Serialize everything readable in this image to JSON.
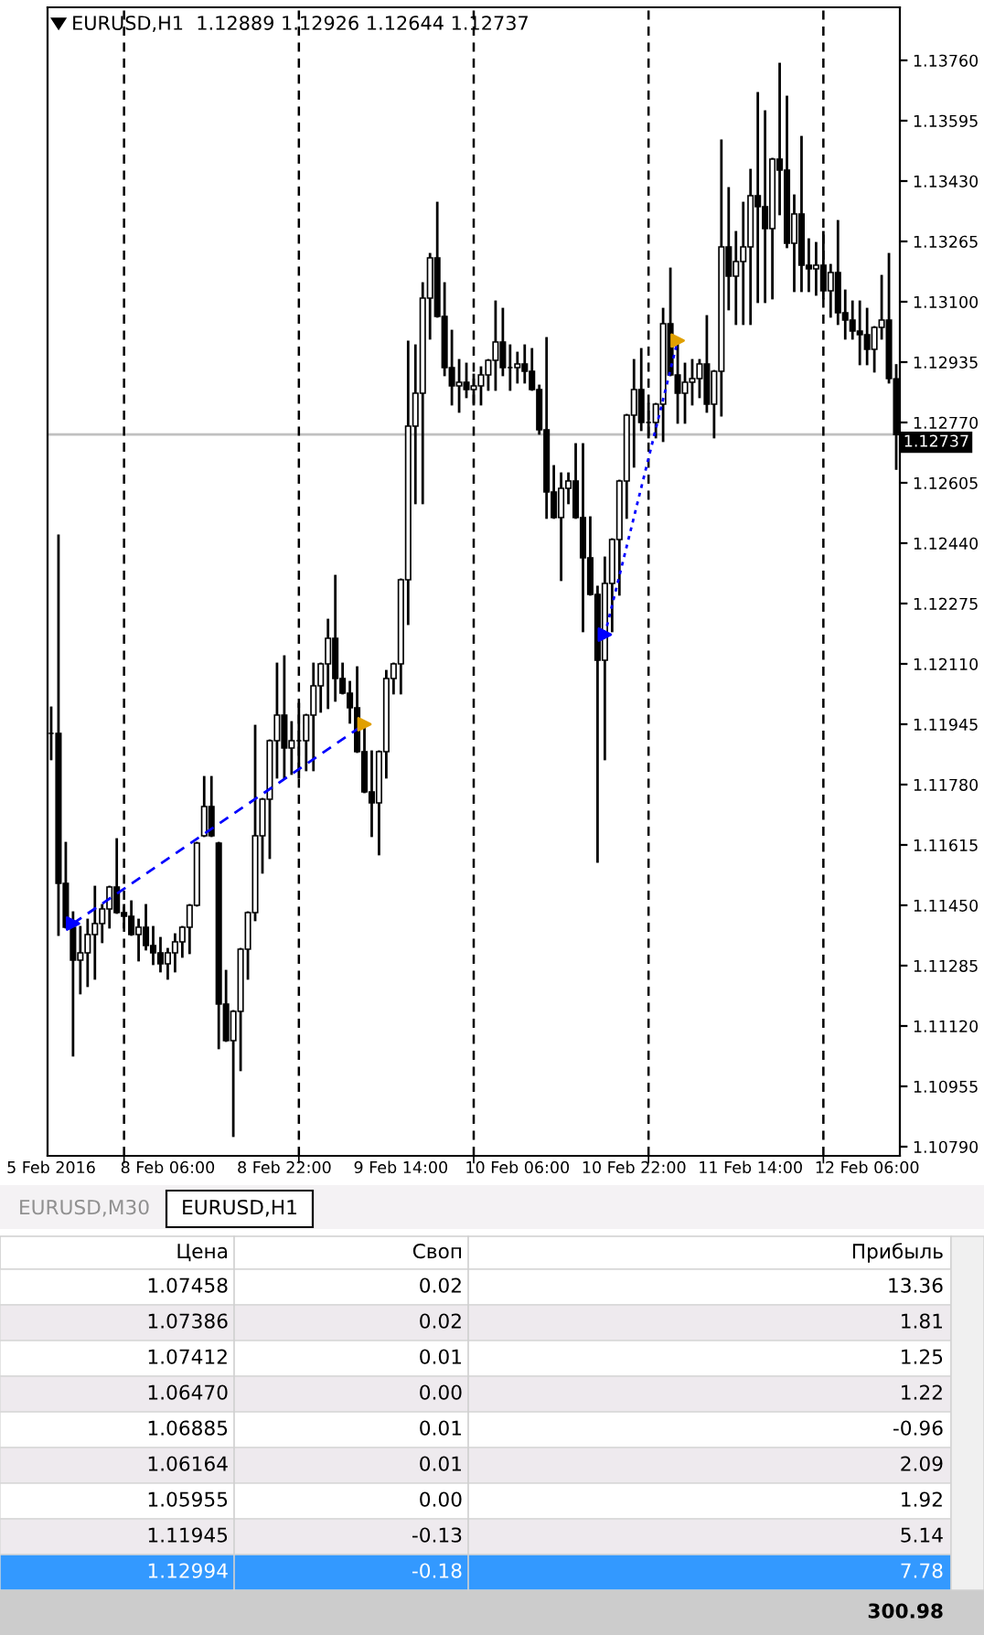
{
  "chart_data": [
    {
      "type": "candlestick",
      "title": "EURUSD,H1  1.12889 1.12926 1.12644 1.12737",
      "color": "#000000",
      "categories": [
        "5 Feb 2016",
        null,
        null,
        null,
        null,
        null,
        null,
        null,
        null,
        null,
        null,
        null,
        null,
        null,
        null,
        null,
        "8 Feb 06:00",
        null,
        null,
        null,
        null,
        null,
        null,
        null,
        null,
        null,
        null,
        null,
        null,
        null,
        null,
        null,
        "8 Feb 22:00",
        null,
        null,
        null,
        null,
        null,
        null,
        null,
        null,
        null,
        null,
        null,
        null,
        null,
        null,
        null,
        "9 Feb 14:00",
        null,
        null,
        null,
        null,
        null,
        null,
        null,
        null,
        null,
        null,
        null,
        null,
        null,
        null,
        null,
        "10 Feb 06:00",
        null,
        null,
        null,
        null,
        null,
        null,
        null,
        null,
        null,
        null,
        null,
        null,
        null,
        null,
        null,
        "10 Feb 22:00",
        null,
        null,
        null,
        null,
        null,
        null,
        null,
        null,
        null,
        null,
        null,
        null,
        null,
        null,
        null,
        "11 Feb 14:00",
        null,
        null,
        null,
        null,
        null,
        null,
        null,
        null,
        null,
        null,
        null,
        null,
        null,
        null,
        null,
        "12 Feb 06:00",
        null,
        null,
        null,
        null
      ],
      "ohlc": [
        [
          1.1192,
          1.1199,
          1.1185,
          1.1192
        ],
        [
          1.1192,
          1.1246,
          1.1137,
          1.1151
        ],
        [
          1.1151,
          1.1162,
          1.1139,
          1.1139
        ],
        [
          1.1139,
          1.1143,
          1.1104,
          1.113
        ],
        [
          1.113,
          1.1139,
          1.1121,
          1.1132
        ],
        [
          1.1132,
          1.1141,
          1.1123,
          1.1137
        ],
        [
          1.1137,
          1.115,
          1.1125,
          1.114
        ],
        [
          1.114,
          1.1145,
          1.1135,
          1.1144
        ],
        [
          1.1144,
          1.115,
          1.1139,
          1.115
        ],
        [
          1.115,
          1.1163,
          1.1143,
          1.1143
        ],
        [
          1.1143,
          1.1145,
          1.1139,
          1.1142
        ],
        [
          1.1142,
          1.1146,
          1.1137,
          1.1137
        ],
        [
          1.1137,
          1.1141,
          1.113,
          1.1139
        ],
        [
          1.1139,
          1.1145,
          1.1133,
          1.1134
        ],
        [
          1.1134,
          1.1139,
          1.1129,
          1.1132
        ],
        [
          1.1132,
          1.1136,
          1.1127,
          1.1129
        ],
        [
          1.1129,
          1.1133,
          1.1125,
          1.1132
        ],
        [
          1.1132,
          1.1137,
          1.1127,
          1.1135
        ],
        [
          1.1135,
          1.1139,
          1.1131,
          1.1139
        ],
        [
          1.1139,
          1.1145,
          1.1132,
          1.1145
        ],
        [
          1.1145,
          1.1162,
          1.1145,
          1.1162
        ],
        [
          1.1164,
          1.118,
          1.1164,
          1.1172
        ],
        [
          1.1172,
          1.118,
          1.1164,
          1.1164
        ],
        [
          1.1162,
          1.1162,
          1.1106,
          1.1118
        ],
        [
          1.1118,
          1.1127,
          1.1108,
          1.1108
        ],
        [
          1.1108,
          1.1116,
          1.1082,
          1.1116
        ],
        [
          1.1116,
          1.1133,
          1.11,
          1.1133
        ],
        [
          1.1133,
          1.1143,
          1.1125,
          1.1143
        ],
        [
          1.1143,
          1.1194,
          1.1141,
          1.1164
        ],
        [
          1.1164,
          1.1174,
          1.1154,
          1.1174
        ],
        [
          1.1174,
          1.119,
          1.1158,
          1.119
        ],
        [
          1.119,
          1.1211,
          1.118,
          1.1197
        ],
        [
          1.1197,
          1.1213,
          1.118,
          1.1188
        ],
        [
          1.1188,
          1.1195,
          1.1181,
          1.119
        ],
        [
          1.119,
          1.12,
          1.118,
          1.119
        ],
        [
          1.119,
          1.1197,
          1.1182,
          1.1197
        ],
        [
          1.1197,
          1.1211,
          1.1182,
          1.1205
        ],
        [
          1.1205,
          1.1211,
          1.1198,
          1.1211
        ],
        [
          1.1211,
          1.1223,
          1.1199,
          1.1218
        ],
        [
          1.1218,
          1.1235,
          1.1201,
          1.1207
        ],
        [
          1.1207,
          1.1211,
          1.1203,
          1.1203
        ],
        [
          1.1203,
          1.1206,
          1.1195,
          1.1199
        ],
        [
          1.1199,
          1.121,
          1.1187,
          1.1187
        ],
        [
          1.1187,
          1.1195,
          1.1176,
          1.1176
        ],
        [
          1.1176,
          1.1187,
          1.1164,
          1.1173
        ],
        [
          1.1173,
          1.1187,
          1.1159,
          1.1187
        ],
        [
          1.1187,
          1.1209,
          1.118,
          1.1207
        ],
        [
          1.1207,
          1.1211,
          1.1203,
          1.1211
        ],
        [
          1.1211,
          1.1234,
          1.1203,
          1.1234
        ],
        [
          1.1234,
          1.1299,
          1.1222,
          1.1276
        ],
        [
          1.1276,
          1.1298,
          1.1255,
          1.1285
        ],
        [
          1.1285,
          1.1315,
          1.1255,
          1.1311
        ],
        [
          1.1311,
          1.1323,
          1.13,
          1.1322
        ],
        [
          1.1322,
          1.1337,
          1.1306,
          1.1306
        ],
        [
          1.1306,
          1.1315,
          1.129,
          1.1292
        ],
        [
          1.1292,
          1.1302,
          1.1282,
          1.1287
        ],
        [
          1.1287,
          1.1294,
          1.128,
          1.1288
        ],
        [
          1.1288,
          1.1293,
          1.1284,
          1.1286
        ],
        [
          1.1286,
          1.129,
          1.1282,
          1.1287
        ],
        [
          1.1287,
          1.1292,
          1.1282,
          1.129
        ],
        [
          1.129,
          1.1294,
          1.1286,
          1.1294
        ],
        [
          1.1294,
          1.131,
          1.1286,
          1.1299
        ],
        [
          1.1299,
          1.1308,
          1.129,
          1.1292
        ],
        [
          1.1292,
          1.1298,
          1.1286,
          1.1292
        ],
        [
          1.1292,
          1.1296,
          1.1288,
          1.1293
        ],
        [
          1.1293,
          1.1298,
          1.1288,
          1.1291
        ],
        [
          1.1291,
          1.1297,
          1.1286,
          1.1286
        ],
        [
          1.1286,
          1.1287,
          1.1274,
          1.1275
        ],
        [
          1.1275,
          1.13,
          1.1251,
          1.1258
        ],
        [
          1.1258,
          1.1265,
          1.1251,
          1.1251
        ],
        [
          1.1251,
          1.1263,
          1.1234,
          1.1259
        ],
        [
          1.1259,
          1.1263,
          1.1255,
          1.1261
        ],
        [
          1.1261,
          1.1271,
          1.1251,
          1.1251
        ],
        [
          1.1251,
          1.1271,
          1.122,
          1.124
        ],
        [
          1.124,
          1.1251,
          1.123,
          1.123
        ],
        [
          1.123,
          1.1232,
          1.1157,
          1.1212
        ],
        [
          1.1212,
          1.124,
          1.1185,
          1.1233
        ],
        [
          1.1233,
          1.1245,
          1.122,
          1.1245
        ],
        [
          1.1245,
          1.1261,
          1.123,
          1.1261
        ],
        [
          1.1261,
          1.1279,
          1.1251,
          1.1279
        ],
        [
          1.1279,
          1.1294,
          1.1265,
          1.1286
        ],
        [
          1.1286,
          1.1297,
          1.1275,
          1.1277
        ],
        [
          1.1277,
          1.1282,
          1.1273,
          1.1277
        ],
        [
          1.1277,
          1.1282,
          1.1273,
          1.1282
        ],
        [
          1.1282,
          1.1308,
          1.1272,
          1.1304
        ],
        [
          1.1304,
          1.1319,
          1.129,
          1.129
        ],
        [
          1.129,
          1.1299,
          1.1277,
          1.1285
        ],
        [
          1.1285,
          1.1293,
          1.1277,
          1.1288
        ],
        [
          1.1288,
          1.1294,
          1.1282,
          1.1289
        ],
        [
          1.1289,
          1.1294,
          1.1284,
          1.1293
        ],
        [
          1.1293,
          1.1306,
          1.128,
          1.1282
        ],
        [
          1.1282,
          1.1291,
          1.1273,
          1.1291
        ],
        [
          1.1291,
          1.1354,
          1.1279,
          1.1325
        ],
        [
          1.1325,
          1.1341,
          1.1308,
          1.1317
        ],
        [
          1.1317,
          1.1329,
          1.1304,
          1.1321
        ],
        [
          1.1321,
          1.1337,
          1.1304,
          1.1325
        ],
        [
          1.1325,
          1.1346,
          1.1304,
          1.1339
        ],
        [
          1.1339,
          1.1367,
          1.131,
          1.1336
        ],
        [
          1.1336,
          1.1362,
          1.131,
          1.133
        ],
        [
          1.133,
          1.1349,
          1.1311,
          1.1349
        ],
        [
          1.1349,
          1.1375,
          1.1334,
          1.1346
        ],
        [
          1.1346,
          1.1366,
          1.1325,
          1.1326
        ],
        [
          1.1326,
          1.1339,
          1.1313,
          1.1334
        ],
        [
          1.1334,
          1.1355,
          1.1313,
          1.132
        ],
        [
          1.132,
          1.1327,
          1.1313,
          1.1319
        ],
        [
          1.1319,
          1.1326,
          1.1312,
          1.132
        ],
        [
          1.132,
          1.1329,
          1.1311,
          1.1313
        ],
        [
          1.1313,
          1.132,
          1.1306,
          1.1318
        ],
        [
          1.1318,
          1.1332,
          1.1304,
          1.1307
        ],
        [
          1.1307,
          1.1313,
          1.13,
          1.1305
        ],
        [
          1.1305,
          1.131,
          1.13,
          1.1302
        ],
        [
          1.1302,
          1.131,
          1.1293,
          1.1301
        ],
        [
          1.1301,
          1.1308,
          1.1293,
          1.1297
        ],
        [
          1.1297,
          1.1303,
          1.1291,
          1.1303
        ],
        [
          1.1303,
          1.1317,
          1.13,
          1.1305
        ],
        [
          1.1305,
          1.1323,
          1.1288,
          1.1289
        ],
        [
          1.12889,
          1.12926,
          1.12644,
          1.12737
        ]
      ],
      "series": [
        {
          "type": "line",
          "color": "#0000ff",
          "line_style": "dashed",
          "values": [
            null,
            null,
            null,
            1.114,
            null,
            null,
            null,
            null,
            null,
            null,
            null,
            null,
            null,
            null,
            null,
            null,
            null,
            null,
            null,
            null,
            null,
            null,
            null,
            null,
            null,
            null,
            null,
            null,
            null,
            null,
            null,
            null,
            null,
            null,
            null,
            null,
            null,
            null,
            null,
            null,
            null,
            null,
            null,
            1.11945,
            null,
            null,
            null,
            null,
            null,
            null,
            null,
            null,
            null,
            null,
            null,
            null,
            null,
            null,
            null,
            null,
            null,
            null,
            null,
            null,
            null,
            null,
            null,
            null,
            null,
            null,
            null,
            null,
            null,
            null,
            null,
            null,
            null,
            null,
            null,
            null,
            null,
            null,
            null,
            null,
            null,
            null,
            null,
            null,
            null,
            null,
            null,
            null,
            null,
            null,
            null,
            null,
            null,
            null,
            null,
            null,
            null,
            null,
            null,
            null,
            null,
            null,
            null,
            null,
            null,
            null,
            null,
            null,
            null,
            null,
            null,
            null,
            null
          ]
        },
        {
          "type": "line",
          "color": "#0000ff",
          "line_style": "dotted",
          "values": [
            null,
            null,
            null,
            null,
            null,
            null,
            null,
            null,
            null,
            null,
            null,
            null,
            null,
            null,
            null,
            null,
            null,
            null,
            null,
            null,
            null,
            null,
            null,
            null,
            null,
            null,
            null,
            null,
            null,
            null,
            null,
            null,
            null,
            null,
            null,
            null,
            null,
            null,
            null,
            null,
            null,
            null,
            null,
            null,
            null,
            null,
            null,
            null,
            null,
            null,
            null,
            null,
            null,
            null,
            null,
            null,
            null,
            null,
            null,
            null,
            null,
            null,
            null,
            null,
            null,
            null,
            null,
            null,
            null,
            null,
            null,
            null,
            null,
            null,
            null,
            null,
            1.1219,
            null,
            null,
            null,
            null,
            null,
            null,
            null,
            null,
            null,
            1.12994,
            null,
            null,
            null,
            null,
            null,
            null,
            null,
            null,
            null,
            null,
            null,
            null,
            null,
            null,
            null,
            null,
            null,
            null,
            null,
            null,
            null,
            null,
            null,
            null,
            null,
            null,
            null,
            null,
            null,
            null
          ]
        },
        {
          "type": "scatter",
          "color": "#0000ff",
          "marker": "triangle",
          "values": [
            null,
            null,
            null,
            1.114,
            null,
            null,
            null,
            null,
            null,
            null,
            null,
            null,
            null,
            null,
            null,
            null,
            null,
            null,
            null,
            null,
            null,
            null,
            null,
            null,
            null,
            null,
            null,
            null,
            null,
            null,
            null,
            null,
            null,
            null,
            null,
            null,
            null,
            null,
            null,
            null,
            null,
            null,
            null,
            null,
            null,
            null,
            null,
            null,
            null,
            null,
            null,
            null,
            null,
            null,
            null,
            null,
            null,
            null,
            null,
            null,
            null,
            null,
            null,
            null,
            null,
            null,
            null,
            null,
            null,
            null,
            null,
            null,
            null,
            null,
            null,
            null,
            1.1219,
            null,
            null,
            null,
            null,
            null,
            null,
            null,
            null,
            null,
            null,
            null,
            null,
            null,
            null,
            null,
            null,
            null,
            null,
            null,
            null,
            null,
            null,
            null,
            null,
            null,
            null,
            null,
            null,
            null,
            null,
            null,
            null,
            null,
            null,
            null,
            null,
            null,
            null,
            null,
            null
          ]
        },
        {
          "type": "scatter",
          "color": "#e0a000",
          "marker": "triangle",
          "values": [
            null,
            null,
            null,
            null,
            null,
            null,
            null,
            null,
            null,
            null,
            null,
            null,
            null,
            null,
            null,
            null,
            null,
            null,
            null,
            null,
            null,
            null,
            null,
            null,
            null,
            null,
            null,
            null,
            null,
            null,
            null,
            null,
            null,
            null,
            null,
            null,
            null,
            null,
            null,
            null,
            null,
            null,
            null,
            1.11945,
            null,
            null,
            null,
            null,
            null,
            null,
            null,
            null,
            null,
            null,
            null,
            null,
            null,
            null,
            null,
            null,
            null,
            null,
            null,
            null,
            null,
            null,
            null,
            null,
            null,
            null,
            null,
            null,
            null,
            null,
            null,
            null,
            null,
            null,
            null,
            null,
            null,
            null,
            null,
            null,
            null,
            null,
            1.12994,
            null,
            null,
            null,
            null,
            null,
            null,
            null,
            null,
            null,
            null,
            null,
            null,
            null,
            null,
            null,
            null,
            null,
            null,
            null,
            null,
            null,
            null,
            null,
            null,
            null,
            null,
            null,
            null,
            null,
            null
          ]
        }
      ],
      "ylim": [
        1.10765,
        1.13905
      ],
      "yticks": [
        {
          "value": 1.1079,
          "label": "1.10790"
        },
        {
          "value": 1.10955,
          "label": "1.10955"
        },
        {
          "value": 1.1112,
          "label": "1.11120"
        },
        {
          "value": 1.11285,
          "label": "1.11285"
        },
        {
          "value": 1.1145,
          "label": "1.11450"
        },
        {
          "value": 1.11615,
          "label": "1.11615"
        },
        {
          "value": 1.1178,
          "label": "1.11780"
        },
        {
          "value": 1.11945,
          "label": "1.11945"
        },
        {
          "value": 1.1211,
          "label": "1.12110"
        },
        {
          "value": 1.12275,
          "label": "1.12275"
        },
        {
          "value": 1.1244,
          "label": "1.12440"
        },
        {
          "value": 1.12605,
          "label": "1.12605"
        },
        {
          "value": 1.1277,
          "label": "1.12770"
        },
        {
          "value": 1.12935,
          "label": "1.12935"
        },
        {
          "value": 1.131,
          "label": "1.13100"
        },
        {
          "value": 1.13265,
          "label": "1.13265"
        },
        {
          "value": 1.1343,
          "label": "1.13430"
        },
        {
          "value": 1.13595,
          "label": "1.13595"
        },
        {
          "value": 1.1376,
          "label": "1.13760"
        }
      ],
      "ref_lines": [
        {
          "axis": "y",
          "value": 1.12737,
          "label": "1.12737",
          "color": "#c0c0c0"
        }
      ],
      "grid": "x"
    },
    {
      "type": "other",
      "annotations": [
        "EURUSD,M30",
        "EURUSD,H1",
        "Цена",
        "Своп",
        "Прибыль",
        "1.07458",
        "0.02",
        "13.36",
        "1.07386",
        "0.02",
        "1.81",
        "1.07412",
        "0.01",
        "1.25",
        "1.06470",
        "0.00",
        "1.22",
        "1.06885",
        "0.01",
        "-0.96",
        "1.06164",
        "0.01",
        "2.09",
        "1.05955",
        "0.00",
        "1.92",
        "1.11945",
        "-0.13",
        "5.14",
        "1.12994",
        "-0.18",
        "7.78",
        "300.98"
      ]
    }
  ]
}
